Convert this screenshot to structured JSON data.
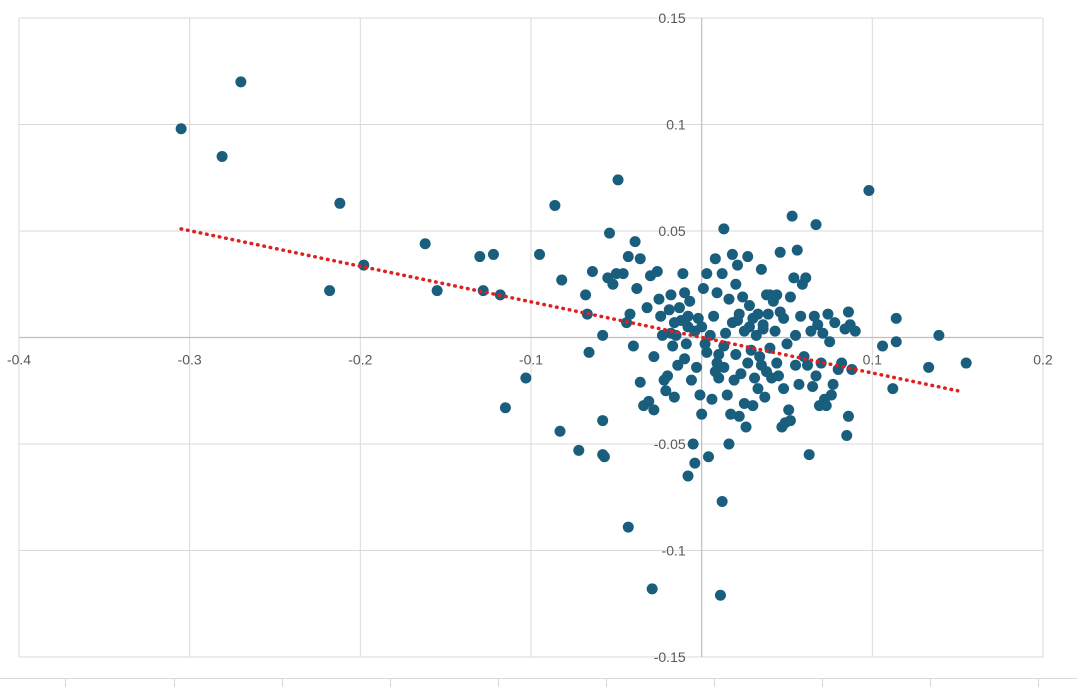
{
  "chart_data": {
    "type": "scatter",
    "title": "",
    "xlabel": "",
    "ylabel": "",
    "xlim": [
      -0.4,
      0.2
    ],
    "ylim": [
      -0.15,
      0.15
    ],
    "x_ticks": [
      -0.4,
      -0.3,
      -0.2,
      -0.1,
      0,
      0.1,
      0.2
    ],
    "y_ticks": [
      -0.15,
      -0.1,
      -0.05,
      0,
      0.05,
      0.1,
      0.15
    ],
    "x_tick_labels": [
      "-0.4",
      "-0.3",
      "-0.2",
      "-0.1",
      "0.1",
      "0.2"
    ],
    "y_tick_labels": [
      "0.15",
      "0.1",
      "0.05",
      "-0.05",
      "-0.1",
      "-0.15"
    ],
    "grid": true,
    "legend": "none",
    "marker_color": "#1a5e7e",
    "trendline": {
      "type": "linear",
      "color": "#e02020",
      "style": "dotted",
      "x_range": [
        -0.305,
        0.15
      ],
      "y_range": [
        0.051,
        -0.025
      ]
    },
    "points": [
      [
        -0.305,
        0.098
      ],
      [
        -0.27,
        0.12
      ],
      [
        -0.281,
        0.085
      ],
      [
        -0.212,
        0.063
      ],
      [
        -0.218,
        0.022
      ],
      [
        -0.198,
        0.034
      ],
      [
        -0.162,
        0.044
      ],
      [
        -0.155,
        0.022
      ],
      [
        -0.13,
        0.038
      ],
      [
        -0.128,
        0.022
      ],
      [
        -0.122,
        0.039
      ],
      [
        -0.118,
        0.02
      ],
      [
        -0.115,
        -0.033
      ],
      [
        -0.095,
        0.039
      ],
      [
        -0.103,
        -0.019
      ],
      [
        -0.086,
        0.062
      ],
      [
        -0.082,
        0.027
      ],
      [
        -0.083,
        -0.044
      ],
      [
        -0.072,
        -0.053
      ],
      [
        -0.068,
        0.02
      ],
      [
        -0.067,
        0.011
      ],
      [
        -0.066,
        -0.007
      ],
      [
        -0.064,
        0.031
      ],
      [
        -0.058,
        0.001
      ],
      [
        -0.058,
        -0.039
      ],
      [
        -0.058,
        -0.055
      ],
      [
        -0.057,
        -0.056
      ],
      [
        -0.055,
        0.028
      ],
      [
        -0.054,
        0.049
      ],
      [
        -0.052,
        0.025
      ],
      [
        -0.05,
        0.03
      ],
      [
        -0.049,
        0.074
      ],
      [
        -0.046,
        0.03
      ],
      [
        -0.044,
        0.007
      ],
      [
        -0.043,
        -0.089
      ],
      [
        -0.043,
        0.038
      ],
      [
        -0.042,
        0.011
      ],
      [
        -0.04,
        -0.004
      ],
      [
        -0.039,
        0.045
      ],
      [
        -0.038,
        0.023
      ],
      [
        -0.036,
        0.037
      ],
      [
        -0.036,
        -0.021
      ],
      [
        -0.034,
        -0.032
      ],
      [
        -0.032,
        0.014
      ],
      [
        -0.031,
        -0.03
      ],
      [
        -0.03,
        0.029
      ],
      [
        -0.029,
        -0.118
      ],
      [
        -0.028,
        -0.034
      ],
      [
        -0.028,
        -0.009
      ],
      [
        -0.026,
        0.031
      ],
      [
        -0.025,
        0.018
      ],
      [
        -0.024,
        0.01
      ],
      [
        -0.023,
        0.001
      ],
      [
        -0.022,
        -0.02
      ],
      [
        -0.021,
        -0.025
      ],
      [
        -0.02,
        -0.018
      ],
      [
        -0.019,
        0.013
      ],
      [
        -0.018,
        0.02
      ],
      [
        -0.017,
        -0.004
      ],
      [
        -0.016,
        0.007
      ],
      [
        -0.016,
        -0.028
      ],
      [
        -0.015,
        0.001
      ],
      [
        -0.014,
        -0.013
      ],
      [
        -0.013,
        0.014
      ],
      [
        -0.012,
        0.008
      ],
      [
        -0.011,
        0.03
      ],
      [
        -0.01,
        0.021
      ],
      [
        -0.01,
        -0.01
      ],
      [
        -0.009,
        -0.003
      ],
      [
        -0.008,
        0.005
      ],
      [
        -0.008,
        -0.065
      ],
      [
        -0.007,
        0.017
      ],
      [
        -0.006,
        -0.02
      ],
      [
        -0.005,
        -0.05
      ],
      [
        -0.004,
        0.003
      ],
      [
        -0.004,
        -0.059
      ],
      [
        -0.003,
        -0.014
      ],
      [
        -0.002,
        0.009
      ],
      [
        -0.001,
        -0.027
      ],
      [
        0.0,
        0.005
      ],
      [
        0.0,
        -0.036
      ],
      [
        0.001,
        0.023
      ],
      [
        0.002,
        -0.003
      ],
      [
        0.003,
        0.03
      ],
      [
        0.003,
        -0.007
      ],
      [
        0.004,
        -0.056
      ],
      [
        0.005,
        0.001
      ],
      [
        0.006,
        -0.029
      ],
      [
        0.007,
        0.01
      ],
      [
        0.008,
        0.037
      ],
      [
        0.008,
        -0.016
      ],
      [
        0.009,
        0.021
      ],
      [
        0.01,
        -0.019
      ],
      [
        0.01,
        -0.008
      ],
      [
        0.011,
        -0.121
      ],
      [
        0.012,
        0.03
      ],
      [
        0.012,
        -0.077
      ],
      [
        0.013,
        0.051
      ],
      [
        0.013,
        -0.014
      ],
      [
        0.014,
        0.002
      ],
      [
        0.015,
        -0.027
      ],
      [
        0.016,
        0.018
      ],
      [
        0.016,
        -0.05
      ],
      [
        0.017,
        -0.036
      ],
      [
        0.018,
        0.039
      ],
      [
        0.018,
        0.007
      ],
      [
        0.019,
        -0.02
      ],
      [
        0.02,
        0.025
      ],
      [
        0.02,
        -0.008
      ],
      [
        0.021,
        0.034
      ],
      [
        0.022,
        -0.037
      ],
      [
        0.022,
        0.011
      ],
      [
        0.023,
        -0.017
      ],
      [
        0.024,
        0.019
      ],
      [
        0.025,
        -0.031
      ],
      [
        0.025,
        0.003
      ],
      [
        0.026,
        -0.042
      ],
      [
        0.027,
        0.038
      ],
      [
        0.027,
        -0.012
      ],
      [
        0.028,
        0.015
      ],
      [
        0.029,
        -0.006
      ],
      [
        0.03,
        -0.032
      ],
      [
        0.03,
        0.009
      ],
      [
        0.031,
        -0.019
      ],
      [
        0.032,
        0.001
      ],
      [
        0.033,
        0.011
      ],
      [
        0.033,
        -0.024
      ],
      [
        0.034,
        -0.009
      ],
      [
        0.035,
        0.032
      ],
      [
        0.035,
        -0.013
      ],
      [
        0.036,
        0.004
      ],
      [
        0.037,
        -0.028
      ],
      [
        0.038,
        0.02
      ],
      [
        0.038,
        -0.016
      ],
      [
        0.039,
        0.011
      ],
      [
        0.04,
        -0.005
      ],
      [
        0.041,
        -0.019
      ],
      [
        0.042,
        0.017
      ],
      [
        0.043,
        0.003
      ],
      [
        0.044,
        -0.012
      ],
      [
        0.044,
        0.02
      ],
      [
        0.045,
        -0.018
      ],
      [
        0.046,
        0.04
      ],
      [
        0.047,
        -0.042
      ],
      [
        0.048,
        -0.024
      ],
      [
        0.048,
        0.009
      ],
      [
        0.049,
        -0.04
      ],
      [
        0.05,
        -0.003
      ],
      [
        0.051,
        -0.034
      ],
      [
        0.052,
        0.019
      ],
      [
        0.052,
        -0.039
      ],
      [
        0.053,
        0.057
      ],
      [
        0.054,
        0.028
      ],
      [
        0.055,
        0.001
      ],
      [
        0.055,
        -0.013
      ],
      [
        0.056,
        0.041
      ],
      [
        0.057,
        -0.022
      ],
      [
        0.058,
        0.01
      ],
      [
        0.059,
        0.025
      ],
      [
        0.06,
        -0.009
      ],
      [
        0.061,
        0.028
      ],
      [
        0.062,
        -0.013
      ],
      [
        0.063,
        -0.055
      ],
      [
        0.064,
        0.003
      ],
      [
        0.065,
        -0.023
      ],
      [
        0.066,
        0.01
      ],
      [
        0.067,
        0.053
      ],
      [
        0.067,
        -0.018
      ],
      [
        0.068,
        0.006
      ],
      [
        0.069,
        -0.032
      ],
      [
        0.07,
        -0.012
      ],
      [
        0.071,
        0.002
      ],
      [
        0.072,
        -0.029
      ],
      [
        0.073,
        -0.032
      ],
      [
        0.074,
        0.011
      ],
      [
        0.075,
        -0.002
      ],
      [
        0.076,
        -0.027
      ],
      [
        0.077,
        -0.022
      ],
      [
        0.078,
        0.007
      ],
      [
        0.08,
        -0.015
      ],
      [
        0.082,
        -0.012
      ],
      [
        0.084,
        0.004
      ],
      [
        0.085,
        -0.046
      ],
      [
        0.086,
        0.012
      ],
      [
        0.086,
        -0.037
      ],
      [
        0.087,
        0.006
      ],
      [
        0.088,
        -0.015
      ],
      [
        0.09,
        0.003
      ],
      [
        0.098,
        0.069
      ],
      [
        0.106,
        -0.004
      ],
      [
        0.112,
        -0.024
      ],
      [
        0.114,
        0.009
      ],
      [
        0.114,
        -0.002
      ],
      [
        0.133,
        -0.014
      ],
      [
        0.139,
        0.001
      ],
      [
        0.155,
        -0.012
      ],
      [
        -0.008,
        0.01
      ],
      [
        -0.018,
        0.002
      ],
      [
        0.028,
        0.005
      ],
      [
        0.036,
        0.006
      ],
      [
        0.04,
        0.02
      ],
      [
        0.021,
        0.008
      ],
      [
        0.013,
        -0.004
      ],
      [
        0.009,
        -0.012
      ],
      [
        0.046,
        0.012
      ]
    ]
  }
}
